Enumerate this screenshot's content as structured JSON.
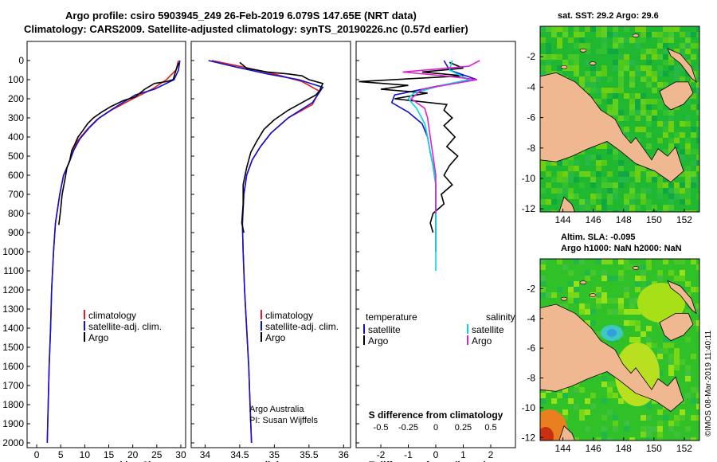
{
  "title": {
    "line1": "Argo profile: csiro 5903945_249 26-Feb-2019 6.079S 147.65E (NRT data)",
    "line2": "Climatology: CARS2009. Satellite-adjusted climatology: synTS_20190226.nc (0.57d earlier)"
  },
  "colors": {
    "climatology": "#e02020",
    "satellite": "#1010d0",
    "argo": "#000000",
    "s_satellite": "#00d8e0",
    "s_argo": "#e020d0",
    "land": "#f0b890"
  },
  "credit": {
    "line1": "Argo Australia",
    "line2": "PI: Susan Wijffels"
  },
  "watermark": "©IMOS 08-Mar-2019 11:40:11",
  "chart_data": [
    {
      "type": "line",
      "id": "temperature",
      "xlabel": "temperature (deg C)",
      "xlim": [
        -2,
        31
      ],
      "ylim": [
        0,
        2050
      ],
      "xticks": [
        0,
        5,
        10,
        15,
        20,
        25,
        30
      ],
      "yticks": [
        0,
        100,
        200,
        300,
        400,
        500,
        600,
        700,
        800,
        900,
        1000,
        1100,
        1200,
        1300,
        1400,
        1500,
        1600,
        1700,
        1800,
        1900,
        2000
      ],
      "legend": [
        "climatology",
        "satellite-adj. clim.",
        "Argo"
      ],
      "series": [
        {
          "name": "climatology",
          "color": "climatology",
          "x": [
            29.5,
            29,
            27,
            24,
            20,
            15.5,
            12.5,
            10.5,
            8.5,
            7.6,
            6.8,
            5.6,
            4.8,
            3.9,
            3.5,
            3.1,
            2.9,
            2.6,
            2.4,
            2.3,
            2.2
          ],
          "y": [
            0,
            50,
            100,
            150,
            200,
            260,
            310,
            360,
            420,
            470,
            530,
            600,
            700,
            850,
            1000,
            1200,
            1400,
            1600,
            1800,
            1900,
            2000
          ]
        },
        {
          "name": "satellite-adj. clim.",
          "color": "satellite",
          "x": [
            29.8,
            29.5,
            28.6,
            24.5,
            20.5,
            16,
            13,
            11,
            9,
            7.7,
            6.8,
            5.6,
            4.8,
            3.9,
            3.5,
            3.1,
            2.9,
            2.6,
            2.4,
            2.3,
            2.2
          ],
          "y": [
            0,
            50,
            100,
            150,
            180,
            250,
            300,
            350,
            410,
            470,
            530,
            600,
            700,
            850,
            1000,
            1200,
            1400,
            1600,
            1800,
            1900,
            2000
          ]
        },
        {
          "name": "Argo",
          "color": "argo",
          "x": [
            29.6,
            29,
            28.4,
            27,
            24.5,
            22.5,
            20.5,
            18,
            15.5,
            13.5,
            11.8,
            10.6,
            9.5,
            8.6,
            7.9,
            7.3,
            6.9,
            6.3,
            5.9,
            5.3,
            4.9,
            4.6
          ],
          "y": [
            10,
            50,
            100,
            110,
            120,
            150,
            190,
            210,
            240,
            270,
            300,
            330,
            370,
            400,
            440,
            470,
            520,
            560,
            620,
            700,
            800,
            860
          ]
        }
      ]
    },
    {
      "type": "line",
      "id": "salinity",
      "xlabel": "salinity",
      "xlim": [
        33.8,
        36.1
      ],
      "ylim": [
        0,
        2050
      ],
      "xticks": [
        34,
        34.5,
        35,
        35.5,
        36
      ],
      "legend": [
        "climatology",
        "satellite-adj. clim.",
        "Argo"
      ],
      "series": [
        {
          "name": "climatology",
          "color": "climatology",
          "x": [
            34.1,
            34.5,
            35.0,
            35.4,
            35.65,
            35.55,
            35.2,
            34.95,
            34.8,
            34.68,
            34.6,
            34.56,
            34.54,
            34.55,
            34.57,
            34.6,
            34.63,
            34.65,
            34.66,
            34.67
          ],
          "y": [
            0,
            30,
            70,
            110,
            160,
            230,
            300,
            380,
            450,
            520,
            600,
            700,
            850,
            1000,
            1200,
            1400,
            1600,
            1800,
            1900,
            2000
          ]
        },
        {
          "name": "satellite-adj. clim.",
          "color": "satellite",
          "x": [
            34.05,
            34.4,
            34.9,
            35.35,
            35.7,
            35.55,
            35.2,
            34.95,
            34.8,
            34.68,
            34.6,
            34.56,
            34.54,
            34.55,
            34.57,
            34.6,
            34.63,
            34.65,
            34.66,
            34.67
          ],
          "y": [
            0,
            30,
            70,
            100,
            140,
            220,
            300,
            380,
            450,
            520,
            600,
            700,
            850,
            1000,
            1200,
            1400,
            1600,
            1800,
            1900,
            2000
          ]
        },
        {
          "name": "Argo",
          "color": "argo",
          "x": [
            34.5,
            34.6,
            34.9,
            35.2,
            35.4,
            35.5,
            35.7,
            35.65,
            35.6,
            35.4,
            35.2,
            35.0,
            34.85,
            34.75,
            34.66,
            34.6,
            34.55,
            34.55,
            34.53,
            34.56
          ],
          "y": [
            10,
            40,
            60,
            70,
            80,
            100,
            120,
            160,
            180,
            220,
            260,
            310,
            360,
            420,
            480,
            560,
            650,
            750,
            850,
            900
          ]
        }
      ]
    },
    {
      "type": "line",
      "id": "difference",
      "xlabel": "T difference from climatology",
      "x2label": "S difference from climatology",
      "xlim": [
        -2.9,
        2.9
      ],
      "ylim": [
        0,
        2050
      ],
      "xticks": [
        -2,
        -1,
        0,
        1,
        2
      ],
      "x2ticks": [
        {
          "v": -0.5,
          "label": "-0.5"
        },
        {
          "v": -0.25,
          "label": "-0.25"
        },
        {
          "v": 0,
          "label": "0"
        },
        {
          "v": 0.25,
          "label": "0.25"
        },
        {
          "v": 0.5,
          "label": "0.5"
        }
      ],
      "legend_t": {
        "heading": "temperature",
        "items": [
          "satellite",
          "Argo"
        ]
      },
      "legend_s": {
        "heading": "salinity",
        "items": [
          "satellite",
          "Argo"
        ]
      },
      "series": [
        {
          "name": "T satellite",
          "color": "satellite",
          "x": [
            0.3,
            0.5,
            1.5,
            0.2,
            -1.5,
            -1.6,
            -1.0,
            -0.5,
            -0.3,
            -0.2,
            -0.1,
            0,
            0,
            0
          ],
          "y": [
            0,
            50,
            100,
            130,
            180,
            220,
            270,
            330,
            400,
            480,
            550,
            650,
            800,
            1000
          ]
        },
        {
          "name": "T Argo",
          "color": "argo",
          "x": [
            0.5,
            1.0,
            -0.5,
            1.0,
            -2.8,
            -1.0,
            -2.0,
            -0.3,
            -1.5,
            0.4,
            0.3,
            0.6,
            0.3,
            0.7,
            0.4,
            0.8,
            0.5,
            0.3,
            0.6,
            0.2,
            0.3,
            -0.1,
            -0.2,
            -0.1
          ],
          "y": [
            10,
            40,
            60,
            80,
            110,
            130,
            150,
            170,
            200,
            230,
            260,
            300,
            340,
            400,
            450,
            500,
            550,
            600,
            650,
            700,
            750,
            800,
            850,
            900
          ]
        },
        {
          "name": "S satellite",
          "color": "s_satellite",
          "x": [
            0.6,
            0.5,
            1.2,
            0.2,
            -0.8,
            -1.0,
            -0.7,
            -0.4,
            -0.3,
            -0.2,
            -0.1,
            0,
            0,
            0
          ],
          "y": [
            0,
            50,
            100,
            130,
            170,
            200,
            250,
            330,
            400,
            480,
            550,
            650,
            800,
            1100
          ]
        },
        {
          "name": "S Argo",
          "color": "s_argo",
          "x": [
            1.6,
            1.2,
            -1.2,
            0.3,
            1.5,
            -0.5,
            -0.9,
            -0.4,
            -0.3,
            -0.2,
            -0.1,
            0,
            0,
            0
          ],
          "y": [
            0,
            30,
            60,
            80,
            100,
            150,
            200,
            250,
            300,
            400,
            500,
            600,
            700,
            800
          ]
        }
      ]
    },
    {
      "type": "heatmap",
      "id": "sst_map",
      "title": "sat. SST: 29.2 Argo: 29.6",
      "xticks": [
        144,
        146,
        148,
        150,
        152
      ],
      "yticks": [
        -2,
        -4,
        -6,
        -8,
        -10,
        -12
      ],
      "xlim": [
        142.5,
        153
      ],
      "ylim": [
        -12.2,
        0
      ]
    },
    {
      "type": "heatmap",
      "id": "sla_map",
      "title1": "Altim. SLA: -0.095",
      "title2": "Argo h1000: NaN h2000: NaN",
      "xticks": [
        144,
        146,
        148,
        150,
        152
      ],
      "yticks": [
        -2,
        -4,
        -6,
        -8,
        -10,
        -12
      ],
      "xlim": [
        142.5,
        153
      ],
      "ylim": [
        -12.2,
        0
      ]
    }
  ]
}
